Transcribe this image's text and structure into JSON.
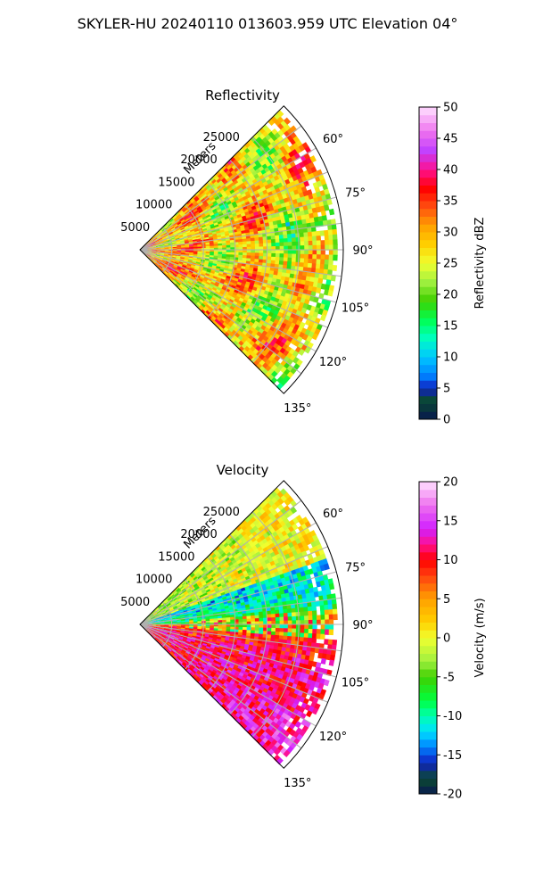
{
  "figure": {
    "title": "SKYLER-HU  20240110  013603.959 UTC Elevation 04°"
  },
  "chart_data": [
    {
      "type": "heatmap",
      "projection": "polar-sector",
      "title": "Reflectivity",
      "radial_label": "Meters",
      "range_ticks": [
        5000,
        10000,
        15000,
        20000,
        25000
      ],
      "range_max": 32000,
      "azimuth_ticks": [
        "60°",
        "75°",
        "90°",
        "105°",
        "120°",
        "135°"
      ],
      "azimuth_range_deg": [
        45,
        135
      ],
      "grid": true,
      "colorbar": {
        "label": "Reflectivity dBZ",
        "min": 0,
        "max": 50,
        "ticks": [
          0,
          5,
          10,
          15,
          20,
          25,
          30,
          35,
          40,
          45,
          50
        ],
        "stops": [
          [
            0,
            "#081850"
          ],
          [
            3,
            "#0a4a30"
          ],
          [
            5,
            "#1020c0"
          ],
          [
            7,
            "#0080ff"
          ],
          [
            10,
            "#00c8ff"
          ],
          [
            13,
            "#00ffc0"
          ],
          [
            16,
            "#00ff50"
          ],
          [
            19,
            "#40d000"
          ],
          [
            22,
            "#a0f040"
          ],
          [
            25,
            "#f0ff30"
          ],
          [
            28,
            "#ffd000"
          ],
          [
            31,
            "#ffa000"
          ],
          [
            34,
            "#ff5010"
          ],
          [
            37,
            "#ff0000"
          ],
          [
            40,
            "#ff1090"
          ],
          [
            43,
            "#c040ff"
          ],
          [
            46,
            "#ee70ee"
          ],
          [
            50,
            "#ffe0ff"
          ]
        ]
      },
      "field_summary": {
        "dominant_dBZ": [
          25,
          35
        ],
        "near_radar_dBZ": 40,
        "far_edge_dBZ": [
          20,
          25
        ]
      }
    },
    {
      "type": "heatmap",
      "projection": "polar-sector",
      "title": "Velocity",
      "radial_label": "Meters",
      "range_ticks": [
        5000,
        10000,
        15000,
        20000,
        25000
      ],
      "range_max": 32000,
      "azimuth_ticks": [
        "60°",
        "75°",
        "90°",
        "105°",
        "120°",
        "135°"
      ],
      "azimuth_range_deg": [
        45,
        135
      ],
      "grid": true,
      "colorbar": {
        "label": "Velocity (m/s)",
        "min": -20,
        "max": 20,
        "ticks": [
          -20,
          -15,
          -10,
          -5,
          0,
          5,
          10,
          15,
          20
        ],
        "stops": [
          [
            -20,
            "#081850"
          ],
          [
            -18,
            "#0a4a30"
          ],
          [
            -16,
            "#1020c0"
          ],
          [
            -14,
            "#0080ff"
          ],
          [
            -12,
            "#00e0ff"
          ],
          [
            -10,
            "#00ffb0"
          ],
          [
            -8,
            "#00ff40"
          ],
          [
            -5,
            "#40d000"
          ],
          [
            -3,
            "#a0f040"
          ],
          [
            0,
            "#f0ff30"
          ],
          [
            2,
            "#ffd000"
          ],
          [
            5,
            "#ffa000"
          ],
          [
            8,
            "#ff4010"
          ],
          [
            10,
            "#ff0000"
          ],
          [
            12,
            "#ff1090"
          ],
          [
            14,
            "#d020ff"
          ],
          [
            17,
            "#ee70ee"
          ],
          [
            20,
            "#ffe0ff"
          ]
        ]
      },
      "field_summary": {
        "upper_sector_m_s": [
          -10,
          -5
        ],
        "lower_sector_m_s": [
          10,
          15
        ],
        "boundary_azimuth_deg": 90
      }
    }
  ]
}
